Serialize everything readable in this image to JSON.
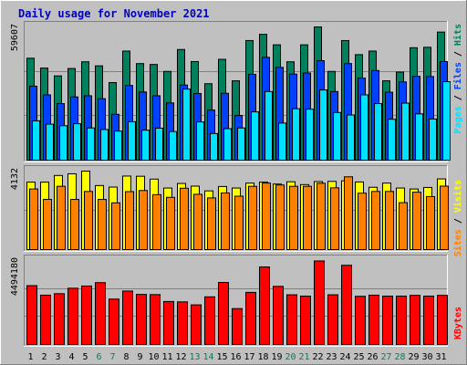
{
  "title": "Daily usage for November 2021",
  "colors": {
    "background": "#C0C0C0",
    "plot_bg": "#C0C0C0",
    "title": "#0000C0",
    "hits": "#00805C",
    "files": "#0040FF",
    "pages": "#00E0FF",
    "visits": "#FFFF00",
    "sites": "#FF8000",
    "kbytes": "#FF0000",
    "weekend_label": "#00805C",
    "weekday_label": "#000000"
  },
  "chart_data": [
    {
      "type": "bar",
      "title": "Daily usage for November 2021",
      "categories": [
        "1",
        "2",
        "3",
        "4",
        "5",
        "6",
        "7",
        "8",
        "9",
        "10",
        "11",
        "12",
        "13",
        "14",
        "15",
        "16",
        "17",
        "18",
        "19",
        "20",
        "21",
        "22",
        "23",
        "24",
        "25",
        "26",
        "27",
        "28",
        "29",
        "30",
        "31"
      ],
      "weekend_days": [
        "6",
        "7",
        "13",
        "14",
        "20",
        "21",
        "27",
        "28"
      ],
      "ymax_label": "59607",
      "ymax": 59607,
      "right_legend": [
        "Pages",
        "Files",
        "Hits"
      ],
      "series": [
        {
          "name": "Hits",
          "values": [
            45600,
            41200,
            37700,
            41000,
            44000,
            42200,
            34700,
            48800,
            43200,
            42800,
            39700,
            49500,
            44100,
            34200,
            45100,
            35500,
            53500,
            56300,
            51600,
            44000,
            51600,
            59600,
            39700,
            53500,
            47200,
            48800,
            35500,
            39400,
            50300,
            50500,
            57300
          ]
        },
        {
          "name": "Files",
          "values": [
            33100,
            29200,
            25300,
            28300,
            28800,
            27500,
            20500,
            33400,
            30500,
            28800,
            25600,
            33600,
            29800,
            22400,
            29900,
            20000,
            38400,
            46000,
            41500,
            38500,
            39000,
            44500,
            30700,
            43200,
            36700,
            40100,
            30400,
            35000,
            37500,
            37400,
            44100
          ]
        },
        {
          "name": "Pages",
          "values": [
            17600,
            16100,
            15400,
            16300,
            14400,
            13700,
            13000,
            17200,
            13400,
            14300,
            12800,
            31800,
            17100,
            11900,
            14100,
            14400,
            21600,
            30700,
            16600,
            23000,
            22800,
            31400,
            21300,
            20200,
            29200,
            25300,
            18300,
            25500,
            20700,
            18400,
            35100
          ]
        }
      ]
    },
    {
      "type": "bar",
      "categories": [
        "1",
        "2",
        "3",
        "4",
        "5",
        "6",
        "7",
        "8",
        "9",
        "10",
        "11",
        "12",
        "13",
        "14",
        "15",
        "16",
        "17",
        "18",
        "19",
        "20",
        "21",
        "22",
        "23",
        "24",
        "25",
        "26",
        "27",
        "28",
        "29",
        "30",
        "31"
      ],
      "ymax_label": "4132",
      "ymax": 4132,
      "right_legend": [
        "Sites",
        "Visits"
      ],
      "series": [
        {
          "name": "Visits",
          "values": [
            3550,
            3550,
            3900,
            3990,
            4130,
            3370,
            3290,
            3870,
            3860,
            3710,
            3240,
            3480,
            3340,
            3090,
            3320,
            3240,
            3500,
            3550,
            3450,
            3570,
            3420,
            3580,
            3590,
            3620,
            3560,
            3280,
            3500,
            3240,
            3190,
            3270,
            3720
          ]
        },
        {
          "name": "Sites",
          "values": [
            3190,
            2640,
            3330,
            2640,
            3060,
            2640,
            2460,
            3050,
            3110,
            2890,
            2750,
            3230,
            2910,
            2720,
            2980,
            2810,
            3330,
            3500,
            3400,
            3330,
            3330,
            3490,
            3250,
            3830,
            2970,
            3060,
            3060,
            2470,
            3020,
            2790,
            3340
          ]
        }
      ]
    },
    {
      "type": "bar",
      "categories": [
        "1",
        "2",
        "3",
        "4",
        "5",
        "6",
        "7",
        "8",
        "9",
        "10",
        "11",
        "12",
        "13",
        "14",
        "15",
        "16",
        "17",
        "18",
        "19",
        "20",
        "21",
        "22",
        "23",
        "24",
        "25",
        "26",
        "27",
        "28",
        "29",
        "30",
        "31"
      ],
      "ymax_label": "4494180",
      "ymax": 4494180,
      "right_legend": [
        "KBytes"
      ],
      "series": [
        {
          "name": "KBytes",
          "values": [
            3150000,
            2640000,
            2720000,
            3010000,
            3130000,
            3310000,
            2430000,
            2860000,
            2680000,
            2670000,
            2300000,
            2280000,
            2120000,
            2550000,
            3320000,
            1920000,
            2790000,
            4150000,
            3110000,
            2660000,
            2590000,
            4470000,
            2660000,
            4240000,
            2580000,
            2640000,
            2590000,
            2590000,
            2630000,
            2590000,
            2630000
          ]
        }
      ]
    }
  ]
}
